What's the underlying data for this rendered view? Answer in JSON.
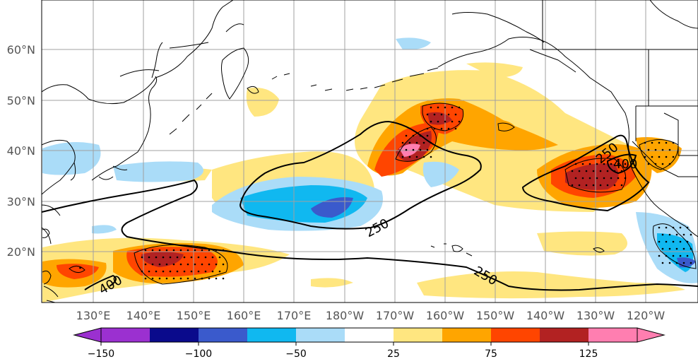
{
  "map": {
    "lat_labels": [
      "60°N",
      "50°N",
      "40°N",
      "30°N",
      "20°N"
    ],
    "lon_labels": [
      "130°E",
      "140°E",
      "150°E",
      "160°E",
      "170°E",
      "180°W",
      "170°W",
      "160°W",
      "150°W",
      "140°W",
      "130°W",
      "120°W"
    ],
    "contour_labels": [
      "250",
      "250",
      "250",
      "400",
      "400"
    ],
    "colors": {
      "grid": "#a0a0a0",
      "coast": "#000000",
      "contour": "#000000"
    }
  },
  "colorbar": {
    "tick_labels": [
      "−150",
      "−100",
      "−50",
      "25",
      "75",
      "125"
    ],
    "colors": [
      "#9b30d0",
      "#0a0a8c",
      "#3a5acc",
      "#10b8f0",
      "#aadcf8",
      "#ffffff",
      "#ffe680",
      "#ffa500",
      "#ff4500",
      "#b22222",
      "#ff7eb0"
    ]
  }
}
